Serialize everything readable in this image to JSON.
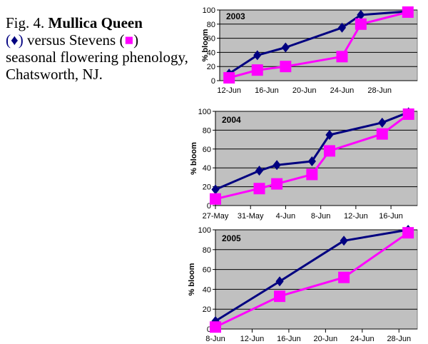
{
  "caption": {
    "fig": "Fig. 4. ",
    "variety_a": "Mullica Queen",
    "marker_a": "(♦)",
    "versus": " versus Stevens (",
    "marker_b": "■",
    "rest": ") seasonal flowering phenology, Chatsworth, NJ."
  },
  "colors": {
    "plot_bg": "#c0c0c0",
    "series_a": "#000080",
    "series_b": "#ff00ff"
  },
  "chart_data": [
    {
      "type": "line",
      "title": "2003",
      "ylabel": "% bloom",
      "ylim": [
        0,
        100
      ],
      "yticks": [
        "0",
        "20",
        "40",
        "60",
        "80",
        "100"
      ],
      "xlim": [
        "2003-06-11",
        "2003-07-02"
      ],
      "xticks": [
        {
          "date": "2003-06-12",
          "label": "12-Jun"
        },
        {
          "date": "2003-06-16",
          "label": "16-Jun"
        },
        {
          "date": "2003-06-20",
          "label": "20-Jun"
        },
        {
          "date": "2003-06-24",
          "label": "24-Jun"
        },
        {
          "date": "2003-06-28",
          "label": "28-Jun"
        }
      ],
      "series": [
        {
          "marker": "diamond",
          "color": "#000080",
          "points": [
            [
              "2003-06-12",
              10
            ],
            [
              "2003-06-15",
              36
            ],
            [
              "2003-06-18",
              47
            ],
            [
              "2003-06-24",
              75
            ],
            [
              "2003-06-26",
              93
            ],
            [
              "2003-07-01",
              98
            ]
          ]
        },
        {
          "marker": "square",
          "color": "#ff00ff",
          "points": [
            [
              "2003-06-12",
              4
            ],
            [
              "2003-06-15",
              15
            ],
            [
              "2003-06-18",
              20
            ],
            [
              "2003-06-24",
              34
            ],
            [
              "2003-06-26",
              80
            ],
            [
              "2003-07-01",
              97
            ]
          ]
        }
      ]
    },
    {
      "type": "line",
      "title": "2004",
      "ylabel": "% bloom",
      "ylim": [
        0,
        100
      ],
      "yticks": [
        "0",
        "20",
        "40",
        "60",
        "80",
        "100"
      ],
      "xlim": [
        "2004-05-27",
        "2004-06-19"
      ],
      "xticks": [
        {
          "date": "2004-05-27",
          "label": "27-May"
        },
        {
          "date": "2004-05-31",
          "label": "31-May"
        },
        {
          "date": "2004-06-04",
          "label": "4-Jun"
        },
        {
          "date": "2004-06-08",
          "label": "8-Jun"
        },
        {
          "date": "2004-06-12",
          "label": "12-Jun"
        },
        {
          "date": "2004-06-16",
          "label": "16-Jun"
        }
      ],
      "series": [
        {
          "marker": "diamond",
          "color": "#000080",
          "points": [
            [
              "2004-05-27",
              17
            ],
            [
              "2004-06-01",
              37
            ],
            [
              "2004-06-03",
              43
            ],
            [
              "2004-06-07",
              47
            ],
            [
              "2004-06-09",
              75
            ],
            [
              "2004-06-15",
              88
            ],
            [
              "2004-06-18",
              99
            ]
          ]
        },
        {
          "marker": "square",
          "color": "#ff00ff",
          "points": [
            [
              "2004-05-27",
              7
            ],
            [
              "2004-06-01",
              18
            ],
            [
              "2004-06-03",
              23
            ],
            [
              "2004-06-07",
              33
            ],
            [
              "2004-06-09",
              58
            ],
            [
              "2004-06-15",
              76
            ],
            [
              "2004-06-18",
              97
            ]
          ]
        }
      ]
    },
    {
      "type": "line",
      "title": "2005",
      "ylabel": "% bloom",
      "ylim": [
        0,
        100
      ],
      "yticks": [
        "0",
        "20",
        "40",
        "60",
        "80",
        "100"
      ],
      "xlim": [
        "2005-06-08",
        "2005-06-30"
      ],
      "xticks": [
        {
          "date": "2005-06-08",
          "label": "8-Jun"
        },
        {
          "date": "2005-06-12",
          "label": "12-Jun"
        },
        {
          "date": "2005-06-16",
          "label": "16-Jun"
        },
        {
          "date": "2005-06-20",
          "label": "20-Jun"
        },
        {
          "date": "2005-06-24",
          "label": "24-Jun"
        },
        {
          "date": "2005-06-28",
          "label": "28-Jun"
        }
      ],
      "series": [
        {
          "marker": "diamond",
          "color": "#000080",
          "points": [
            [
              "2005-06-08",
              8
            ],
            [
              "2005-06-15",
              48
            ],
            [
              "2005-06-22",
              89
            ],
            [
              "2005-06-29",
              100
            ]
          ]
        },
        {
          "marker": "square",
          "color": "#ff00ff",
          "points": [
            [
              "2005-06-08",
              2
            ],
            [
              "2005-06-15",
              33
            ],
            [
              "2005-06-22",
              52
            ],
            [
              "2005-06-29",
              97
            ]
          ]
        }
      ]
    }
  ]
}
